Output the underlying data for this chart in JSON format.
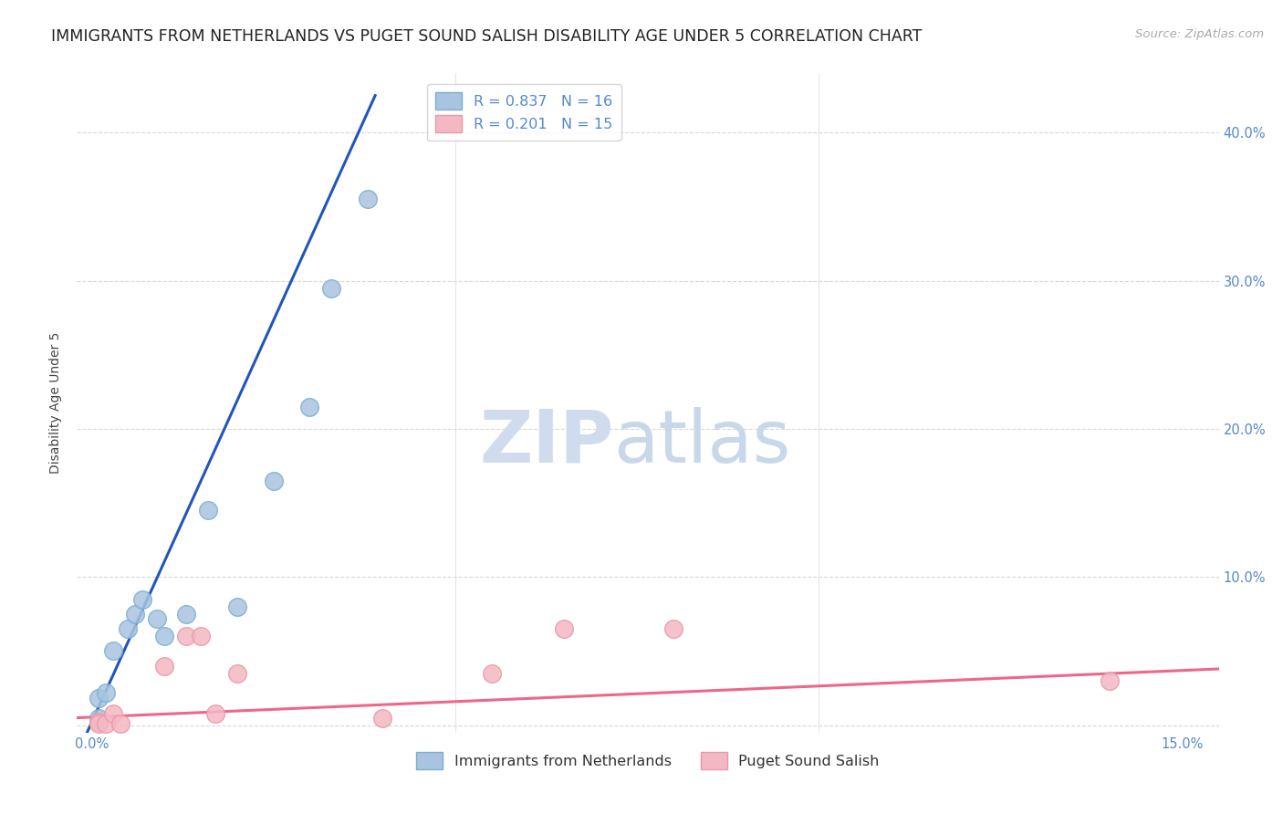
{
  "title": "IMMIGRANTS FROM NETHERLANDS VS PUGET SOUND SALISH DISABILITY AGE UNDER 5 CORRELATION CHART",
  "source": "Source: ZipAtlas.com",
  "ylabel": "Disability Age Under 5",
  "xlim": [
    -0.002,
    0.155
  ],
  "ylim": [
    -0.005,
    0.44
  ],
  "xticks": [
    0.0,
    0.05,
    0.1,
    0.15
  ],
  "xticklabels": [
    "0.0%",
    "",
    "",
    "15.0%"
  ],
  "yticks": [
    0.0,
    0.1,
    0.2,
    0.3,
    0.4
  ],
  "yticklabels_right": [
    "",
    "10.0%",
    "20.0%",
    "30.0%",
    "40.0%"
  ],
  "blue_scatter_x": [
    0.001,
    0.001,
    0.002,
    0.003,
    0.005,
    0.006,
    0.007,
    0.009,
    0.01,
    0.013,
    0.016,
    0.02,
    0.025,
    0.03,
    0.033,
    0.038
  ],
  "blue_scatter_y": [
    0.005,
    0.018,
    0.022,
    0.05,
    0.065,
    0.075,
    0.085,
    0.072,
    0.06,
    0.075,
    0.145,
    0.08,
    0.165,
    0.215,
    0.295,
    0.355
  ],
  "pink_scatter_x": [
    0.001,
    0.001,
    0.002,
    0.003,
    0.004,
    0.01,
    0.013,
    0.015,
    0.017,
    0.02,
    0.04,
    0.055,
    0.065,
    0.08,
    0.14
  ],
  "pink_scatter_y": [
    0.002,
    0.001,
    0.001,
    0.008,
    0.001,
    0.04,
    0.06,
    0.06,
    0.008,
    0.035,
    0.005,
    0.035,
    0.065,
    0.065,
    0.03
  ],
  "blue_line_x": [
    -0.002,
    0.039
  ],
  "blue_line_y": [
    -0.02,
    0.425
  ],
  "pink_line_x": [
    -0.002,
    0.155
  ],
  "pink_line_y": [
    0.005,
    0.038
  ],
  "blue_color": "#A8C4E0",
  "pink_color": "#F4B8C4",
  "blue_edge_color": "#7AAFD0",
  "pink_edge_color": "#E898A8",
  "blue_line_color": "#2255BB",
  "pink_line_color": "#EE6688",
  "R_blue": "0.837",
  "N_blue": "16",
  "R_pink": "0.201",
  "N_pink": "15",
  "legend_label_blue": "Immigrants from Netherlands",
  "legend_label_pink": "Puget Sound Salish",
  "watermark_zip": "ZIP",
  "watermark_atlas": "atlas",
  "background_color": "#ffffff",
  "grid_color": "#d8d8d8",
  "title_fontsize": 12.5,
  "axis_label_fontsize": 10,
  "tick_fontsize": 10.5,
  "legend_fontsize": 11.5,
  "tick_color": "#5588CC"
}
